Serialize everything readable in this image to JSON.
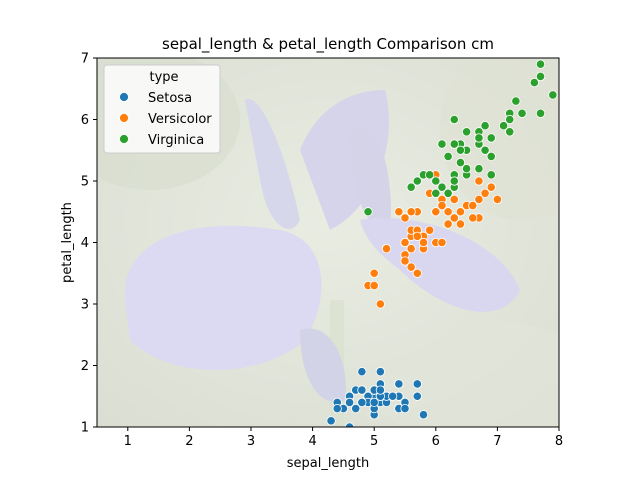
{
  "chart_data": {
    "type": "scatter",
    "title": "sepal_length & petal_length Comparison cm",
    "xlabel": "sepal_length",
    "ylabel": "petal_length",
    "xlim": [
      0.5,
      8
    ],
    "ylim": [
      1,
      7
    ],
    "xticks": [
      "1",
      "2",
      "3",
      "4",
      "5",
      "6",
      "7",
      "8"
    ],
    "yticks": [
      "1",
      "2",
      "3",
      "4",
      "5",
      "6",
      "7"
    ],
    "grid": false,
    "background_image": "iris-flower-photo",
    "legend": {
      "title": "type",
      "position": "top-left"
    },
    "series": [
      {
        "name": "Setosa",
        "color": "#1f77b4",
        "points": [
          [
            5.1,
            1.4
          ],
          [
            4.9,
            1.4
          ],
          [
            4.7,
            1.3
          ],
          [
            4.6,
            1.5
          ],
          [
            5.0,
            1.4
          ],
          [
            5.4,
            1.7
          ],
          [
            4.6,
            1.4
          ],
          [
            5.0,
            1.5
          ],
          [
            4.4,
            1.4
          ],
          [
            4.9,
            1.5
          ],
          [
            5.4,
            1.5
          ],
          [
            4.8,
            1.6
          ],
          [
            4.8,
            1.4
          ],
          [
            4.3,
            1.1
          ],
          [
            5.8,
            1.2
          ],
          [
            5.7,
            1.5
          ],
          [
            5.4,
            1.3
          ],
          [
            5.1,
            1.4
          ],
          [
            5.7,
            1.7
          ],
          [
            5.1,
            1.5
          ],
          [
            5.4,
            1.7
          ],
          [
            5.1,
            1.5
          ],
          [
            4.6,
            1.0
          ],
          [
            5.1,
            1.7
          ],
          [
            4.8,
            1.9
          ],
          [
            5.0,
            1.6
          ],
          [
            5.0,
            1.6
          ],
          [
            5.2,
            1.5
          ],
          [
            5.2,
            1.4
          ],
          [
            4.7,
            1.6
          ],
          [
            4.8,
            1.6
          ],
          [
            5.4,
            1.5
          ],
          [
            5.2,
            1.5
          ],
          [
            5.5,
            1.4
          ],
          [
            4.9,
            1.5
          ],
          [
            5.0,
            1.2
          ],
          [
            5.5,
            1.3
          ],
          [
            4.9,
            1.4
          ],
          [
            4.4,
            1.3
          ],
          [
            5.1,
            1.5
          ],
          [
            5.0,
            1.3
          ],
          [
            4.5,
            1.3
          ],
          [
            4.4,
            1.3
          ],
          [
            5.0,
            1.6
          ],
          [
            5.1,
            1.9
          ],
          [
            4.8,
            1.4
          ],
          [
            5.1,
            1.6
          ],
          [
            4.6,
            1.4
          ],
          [
            5.3,
            1.5
          ],
          [
            5.0,
            1.4
          ]
        ]
      },
      {
        "name": "Versicolor",
        "color": "#ff7f0e",
        "points": [
          [
            7.0,
            4.7
          ],
          [
            6.4,
            4.5
          ],
          [
            6.9,
            4.9
          ],
          [
            5.5,
            4.0
          ],
          [
            6.5,
            4.6
          ],
          [
            5.7,
            4.5
          ],
          [
            6.3,
            4.7
          ],
          [
            4.9,
            3.3
          ],
          [
            6.6,
            4.6
          ],
          [
            5.2,
            3.9
          ],
          [
            5.0,
            3.5
          ],
          [
            5.9,
            4.2
          ],
          [
            6.0,
            4.0
          ],
          [
            6.1,
            4.7
          ],
          [
            5.6,
            3.6
          ],
          [
            6.7,
            4.4
          ],
          [
            5.6,
            4.5
          ],
          [
            5.8,
            4.1
          ],
          [
            6.2,
            4.5
          ],
          [
            5.6,
            3.9
          ],
          [
            5.9,
            4.8
          ],
          [
            6.1,
            4.0
          ],
          [
            6.3,
            4.9
          ],
          [
            6.1,
            4.7
          ],
          [
            6.4,
            4.3
          ],
          [
            6.6,
            4.4
          ],
          [
            6.8,
            4.8
          ],
          [
            6.7,
            5.0
          ],
          [
            6.0,
            4.5
          ],
          [
            5.7,
            3.5
          ],
          [
            5.5,
            3.8
          ],
          [
            5.5,
            3.7
          ],
          [
            5.8,
            3.9
          ],
          [
            6.0,
            5.1
          ],
          [
            5.4,
            4.5
          ],
          [
            6.0,
            4.5
          ],
          [
            6.7,
            4.7
          ],
          [
            6.3,
            4.4
          ],
          [
            5.6,
            4.1
          ],
          [
            5.5,
            4.0
          ],
          [
            5.5,
            4.4
          ],
          [
            6.1,
            4.6
          ],
          [
            5.8,
            4.0
          ],
          [
            5.0,
            3.3
          ],
          [
            5.6,
            4.2
          ],
          [
            5.7,
            4.2
          ],
          [
            5.7,
            4.2
          ],
          [
            6.2,
            4.3
          ],
          [
            5.1,
            3.0
          ],
          [
            5.7,
            4.1
          ]
        ]
      },
      {
        "name": "Virginica",
        "color": "#2ca02c",
        "points": [
          [
            6.3,
            6.0
          ],
          [
            5.8,
            5.1
          ],
          [
            7.1,
            5.9
          ],
          [
            6.3,
            5.6
          ],
          [
            6.5,
            5.8
          ],
          [
            7.6,
            6.6
          ],
          [
            4.9,
            4.5
          ],
          [
            7.3,
            6.3
          ],
          [
            6.7,
            5.8
          ],
          [
            7.2,
            6.1
          ],
          [
            6.5,
            5.1
          ],
          [
            6.4,
            5.3
          ],
          [
            6.8,
            5.5
          ],
          [
            5.7,
            5.0
          ],
          [
            5.8,
            5.1
          ],
          [
            6.4,
            5.3
          ],
          [
            6.5,
            5.5
          ],
          [
            7.7,
            6.7
          ],
          [
            7.7,
            6.9
          ],
          [
            6.0,
            5.0
          ],
          [
            6.9,
            5.7
          ],
          [
            5.6,
            4.9
          ],
          [
            7.7,
            6.7
          ],
          [
            6.3,
            4.9
          ],
          [
            6.7,
            5.7
          ],
          [
            7.2,
            6.0
          ],
          [
            6.2,
            4.8
          ],
          [
            6.1,
            4.9
          ],
          [
            6.4,
            5.6
          ],
          [
            7.2,
            5.8
          ],
          [
            7.4,
            6.1
          ],
          [
            7.9,
            6.4
          ],
          [
            6.4,
            5.6
          ],
          [
            6.3,
            5.1
          ],
          [
            6.1,
            5.6
          ],
          [
            7.7,
            6.1
          ],
          [
            6.3,
            5.6
          ],
          [
            6.4,
            5.5
          ],
          [
            6.0,
            4.8
          ],
          [
            6.9,
            5.4
          ],
          [
            6.7,
            5.6
          ],
          [
            6.9,
            5.1
          ],
          [
            5.8,
            5.1
          ],
          [
            6.8,
            5.9
          ],
          [
            6.7,
            5.7
          ],
          [
            6.7,
            5.2
          ],
          [
            6.3,
            5.0
          ],
          [
            6.5,
            5.2
          ],
          [
            6.2,
            5.4
          ],
          [
            5.9,
            5.1
          ]
        ]
      }
    ]
  }
}
